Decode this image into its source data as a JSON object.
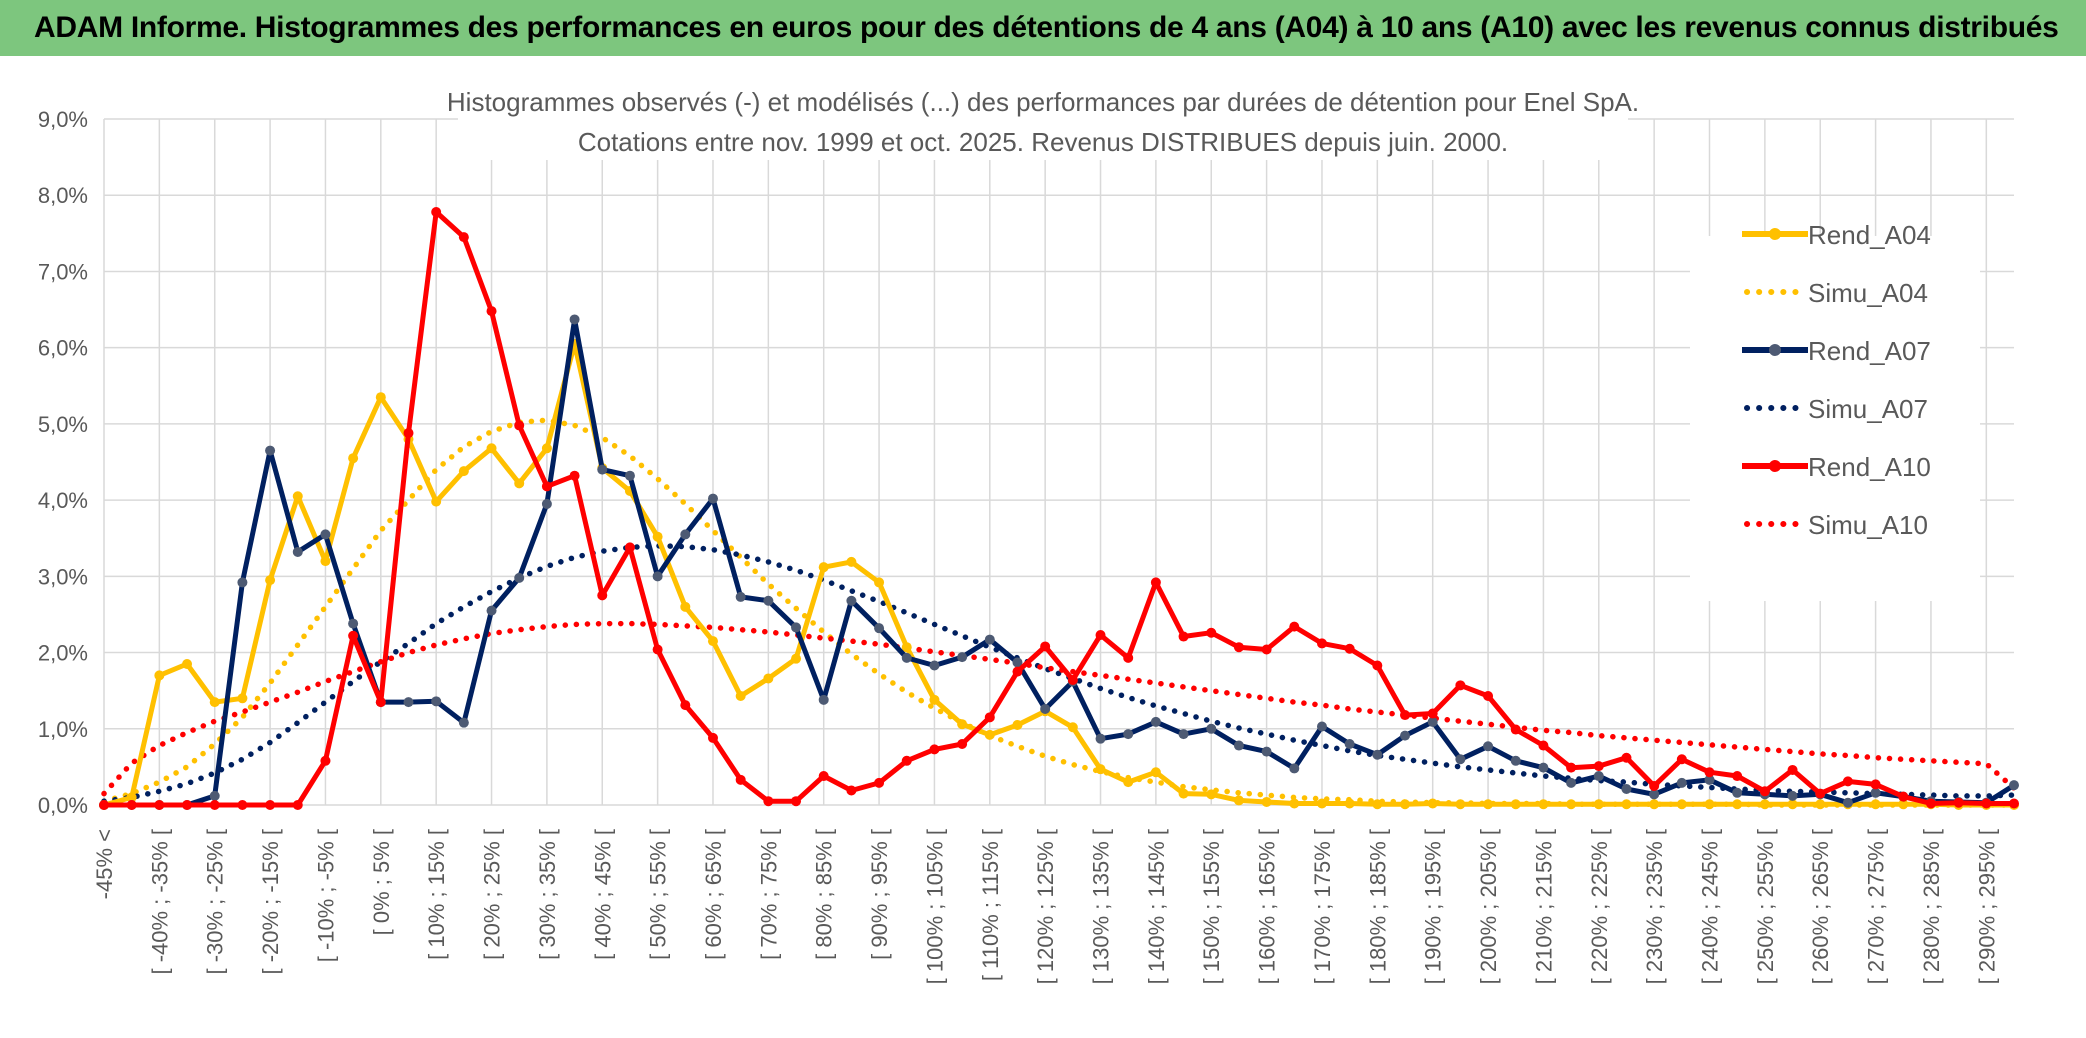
{
  "page": {
    "banner_title": "ADAM Informe. Histogrammes des performances en euros pour des détentions de 4 ans (A04) à 10 ans (A10) avec les revenus connus distribués"
  },
  "chart_data": {
    "type": "line",
    "title": "Histogrammes observés (-) et modélisés (...) des performances par durées de détention pour Enel SpA.",
    "subtitle": "Cotations entre nov. 1999 et oct. 2025. Revenus DISTRIBUES depuis juin. 2000.",
    "xlabel": "",
    "ylabel": "",
    "ylim": [
      0,
      9
    ],
    "y_tick_labels": [
      "0,0%",
      "1,0%",
      "2,0%",
      "3,0%",
      "4,0%",
      "5,0%",
      "6,0%",
      "7,0%",
      "8,0%",
      "9,0%"
    ],
    "grid": true,
    "legend_position": "right",
    "categories": [
      "-45% <",
      "[ -45% ; -40% [",
      "[ -40% ; -35% [",
      "[ -35% ; -30% [",
      "[ -30% ; -25% [",
      "[ -25% ; -20% [",
      "[ -20% ; -15% [",
      "[ -15% ; -10% [",
      "[ -10% ; -5% [",
      "[ -5% ; 0% [",
      "[ 0% ; 5% [",
      "[ 5% ; 10% [",
      "[ 10% ; 15% [",
      "[ 15% ; 20% [",
      "[ 20% ; 25% [",
      "[ 25% ; 30% [",
      "[ 30% ; 35% [",
      "[ 35% ; 40% [",
      "[ 40% ; 45% [",
      "[ 45% ; 50% [",
      "[ 50% ; 55% [",
      "[ 55% ; 60% [",
      "[ 60% ; 65% [",
      "[ 65% ; 70% [",
      "[ 70% ; 75% [",
      "[ 75% ; 80% [",
      "[ 80% ; 85% [",
      "[ 85% ; 90% [",
      "[ 90% ; 95% [",
      "[ 95% ; 100% [",
      "[ 100% ; 105% [",
      "[ 105% ; 110% [",
      "[ 110% ; 115% [",
      "[ 115% ; 120% [",
      "[ 120% ; 125% [",
      "[ 125% ; 130% [",
      "[ 130% ; 135% [",
      "[ 135% ; 140% [",
      "[ 140% ; 145% [",
      "[ 145% ; 150% [",
      "[ 150% ; 155% [",
      "[ 155% ; 160% [",
      "[ 160% ; 165% [",
      "[ 165% ; 170% [",
      "[ 170% ; 175% [",
      "[ 175% ; 180% [",
      "[ 180% ; 185% [",
      "[ 185% ; 190% [",
      "[ 190% ; 195% [",
      "[ 195% ; 200% [",
      "[ 200% ; 205% [",
      "[ 205% ; 210% [",
      "[ 210% ; 215% [",
      "[ 215% ; 220% [",
      "[ 220% ; 225% [",
      "[ 225% ; 230% [",
      "[ 230% ; 235% [",
      "[ 235% ; 240% [",
      "[ 240% ; 245% [",
      "[ 245% ; 250% [",
      "[ 250% ; 255% [",
      "[ 255% ; 260% [",
      "[ 260% ; 265% [",
      "[ 265% ; 270% [",
      "[ 270% ; 275% [",
      "[ 275% ; 280% [",
      "[ 280% ; 285% [",
      "[ 285% ; 290% [",
      "[ 290% ; 295% [",
      "[ 295% ; 300% ["
    ],
    "category_labels_shown": [
      "-45% <",
      "[ -40% ; -35% [",
      "[ -30% ; -25% [",
      "[ -20% ; -15% [",
      "[ -10% ; -5% [",
      "[ 0% ; 5% [",
      "[ 10% ; 15% [",
      "[ 20% ; 25% [",
      "[ 30% ; 35% [",
      "[ 40% ; 45% [",
      "[ 50% ; 55% [",
      "[ 60% ; 65% [",
      "[ 70% ; 75% [",
      "[ 80% ; 85% [",
      "[ 90% ; 95% [",
      "[ 100% ; 105% [",
      "[ 110% ; 115% [",
      "[ 120% ; 125% [",
      "[ 130% ; 135% [",
      "[ 140% ; 145% [",
      "[ 150% ; 155% [",
      "[ 160% ; 165% [",
      "[ 170% ; 175% [",
      "[ 180% ; 185% [",
      "[ 190% ; 195% [",
      "[ 200% ; 205% [",
      "[ 210% ; 215% [",
      "[ 220% ; 225% [",
      "[ 230% ; 235% [",
      "[ 240% ; 245% [",
      "[ 250% ; 255% [",
      "[ 260% ; 265% [",
      "[ 270% ; 275% [",
      "[ 280% ; 285% [",
      "[ 290% ; 295% ["
    ],
    "series": [
      {
        "name": "Rend_A04",
        "style": "solid",
        "color": "#ffc000",
        "values": [
          0.0,
          0.1,
          1.7,
          1.85,
          1.35,
          1.4,
          2.95,
          4.05,
          3.2,
          4.55,
          5.35,
          4.8,
          3.98,
          4.38,
          4.68,
          4.22,
          4.68,
          6.05,
          4.42,
          4.12,
          3.52,
          2.6,
          2.15,
          1.43,
          1.66,
          1.92,
          3.12,
          3.19,
          2.92,
          2.07,
          1.38,
          1.06,
          0.92,
          1.05,
          1.23,
          1.02,
          0.47,
          0.3,
          0.43,
          0.15,
          0.14,
          0.06,
          0.04,
          0.02,
          0.02,
          0.02,
          0.01,
          0.01,
          0.02,
          0.01,
          0.01,
          0.01,
          0.01,
          0.01,
          0.01,
          0.01,
          0.01,
          0.01,
          0.01,
          0.01,
          0.01,
          0.01,
          0.01,
          0.01,
          0.01,
          0.01,
          0.01,
          0.0,
          0.0,
          0.0
        ]
      },
      {
        "name": "Simu_A04",
        "style": "dotted",
        "color": "#ffc000",
        "values": [
          0.05,
          0.15,
          0.3,
          0.5,
          0.8,
          1.15,
          1.6,
          2.1,
          2.6,
          3.1,
          3.6,
          4.0,
          4.4,
          4.7,
          4.9,
          5.02,
          5.05,
          4.98,
          4.82,
          4.58,
          4.28,
          3.95,
          3.6,
          3.25,
          2.9,
          2.58,
          2.27,
          1.98,
          1.72,
          1.48,
          1.27,
          1.08,
          0.91,
          0.77,
          0.64,
          0.53,
          0.44,
          0.36,
          0.3,
          0.24,
          0.2,
          0.16,
          0.13,
          0.1,
          0.08,
          0.07,
          0.05,
          0.04,
          0.03,
          0.03,
          0.02,
          0.02,
          0.02,
          0.01,
          0.01,
          0.01,
          0.01,
          0.01,
          0.01,
          0.01,
          0.0,
          0.0,
          0.0,
          0.0,
          0.0,
          0.0,
          0.0,
          0.0,
          0.0,
          0.0
        ]
      },
      {
        "name": "Rend_A07",
        "style": "solid",
        "color": "#002060",
        "values": [
          0.0,
          0.0,
          0.0,
          0.0,
          0.12,
          2.92,
          4.65,
          3.32,
          3.55,
          2.38,
          1.35,
          1.35,
          1.36,
          1.08,
          2.55,
          2.98,
          3.95,
          6.37,
          4.4,
          4.32,
          3.0,
          3.55,
          4.02,
          2.73,
          2.68,
          2.33,
          1.38,
          2.68,
          2.32,
          1.93,
          1.83,
          1.94,
          2.17,
          1.87,
          1.26,
          1.62,
          0.87,
          0.93,
          1.09,
          0.93,
          1.0,
          0.78,
          0.7,
          0.48,
          1.03,
          0.8,
          0.66,
          0.91,
          1.09,
          0.6,
          0.77,
          0.58,
          0.49,
          0.29,
          0.38,
          0.21,
          0.14,
          0.29,
          0.33,
          0.16,
          0.14,
          0.12,
          0.14,
          0.03,
          0.16,
          0.11,
          0.05,
          0.04,
          0.03,
          0.26
        ]
      },
      {
        "name": "Simu_A07",
        "style": "dotted",
        "color": "#002060",
        "values": [
          0.05,
          0.1,
          0.18,
          0.28,
          0.42,
          0.6,
          0.82,
          1.08,
          1.35,
          1.62,
          1.88,
          2.12,
          2.38,
          2.6,
          2.8,
          2.98,
          3.13,
          3.25,
          3.33,
          3.38,
          3.4,
          3.39,
          3.35,
          3.28,
          3.19,
          3.08,
          2.95,
          2.81,
          2.67,
          2.52,
          2.37,
          2.22,
          2.07,
          1.93,
          1.79,
          1.66,
          1.53,
          1.41,
          1.3,
          1.2,
          1.1,
          1.01,
          0.93,
          0.85,
          0.78,
          0.71,
          0.65,
          0.6,
          0.55,
          0.5,
          0.46,
          0.42,
          0.38,
          0.35,
          0.32,
          0.3,
          0.27,
          0.25,
          0.23,
          0.21,
          0.19,
          0.18,
          0.17,
          0.16,
          0.15,
          0.14,
          0.13,
          0.12,
          0.12,
          0.13
        ]
      },
      {
        "name": "Rend_A10",
        "style": "solid",
        "color": "#ff0000",
        "values": [
          0.0,
          0.0,
          0.0,
          0.0,
          0.0,
          0.0,
          0.0,
          0.0,
          0.58,
          2.22,
          1.35,
          4.88,
          7.78,
          7.45,
          6.48,
          4.98,
          4.18,
          4.32,
          2.75,
          3.38,
          2.04,
          1.31,
          0.88,
          0.33,
          0.05,
          0.05,
          0.38,
          0.19,
          0.29,
          0.58,
          0.73,
          0.8,
          1.15,
          1.75,
          2.08,
          1.64,
          2.23,
          1.93,
          2.92,
          2.21,
          2.26,
          2.07,
          2.04,
          2.34,
          2.12,
          2.05,
          1.83,
          1.18,
          1.2,
          1.57,
          1.43,
          0.99,
          0.78,
          0.49,
          0.51,
          0.62,
          0.25,
          0.6,
          0.43,
          0.38,
          0.18,
          0.46,
          0.15,
          0.31,
          0.27,
          0.11,
          0.02,
          0.03,
          0.02,
          0.02
        ]
      },
      {
        "name": "Simu_A10",
        "style": "dotted",
        "color": "#ff0000",
        "values": [
          0.15,
          0.55,
          0.78,
          0.95,
          1.1,
          1.22,
          1.35,
          1.48,
          1.62,
          1.75,
          1.88,
          2.0,
          2.1,
          2.18,
          2.25,
          2.3,
          2.34,
          2.37,
          2.38,
          2.38,
          2.37,
          2.35,
          2.33,
          2.3,
          2.27,
          2.23,
          2.19,
          2.15,
          2.11,
          2.06,
          2.01,
          1.96,
          1.91,
          1.86,
          1.8,
          1.75,
          1.7,
          1.65,
          1.6,
          1.55,
          1.5,
          1.45,
          1.4,
          1.35,
          1.31,
          1.26,
          1.22,
          1.18,
          1.14,
          1.1,
          1.06,
          1.02,
          0.98,
          0.95,
          0.91,
          0.88,
          0.85,
          0.82,
          0.79,
          0.76,
          0.73,
          0.7,
          0.67,
          0.65,
          0.62,
          0.6,
          0.58,
          0.56,
          0.54,
          0.22
        ]
      }
    ]
  }
}
